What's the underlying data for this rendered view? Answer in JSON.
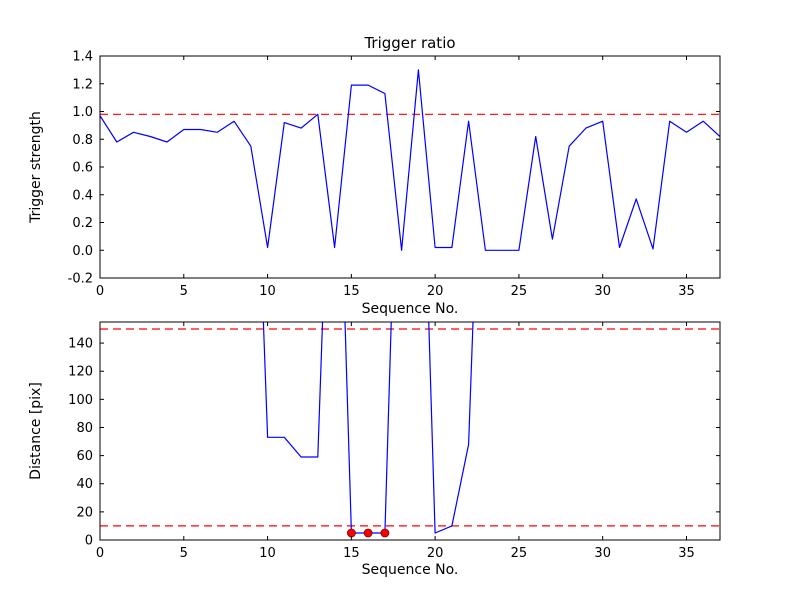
{
  "figure": {
    "background_color": "#ffffff",
    "frame_color": "#000000",
    "line_color": "#0000ff",
    "threshold_color": "#ff0000",
    "marker_color": "#ff0000"
  },
  "chart_data": [
    {
      "type": "line",
      "title": "Trigger ratio",
      "xlabel": "Sequence No.",
      "ylabel": "Trigger strength",
      "xlim": [
        0,
        37
      ],
      "ylim": [
        -0.2,
        1.4
      ],
      "grid": false,
      "legend": "none",
      "xticks": [
        0,
        5,
        10,
        15,
        20,
        25,
        30,
        35
      ],
      "xtick_labels": [
        "0",
        "5",
        "10",
        "15",
        "20",
        "25",
        "30",
        "35"
      ],
      "yticks": [
        -0.2,
        0.0,
        0.2,
        0.4,
        0.6,
        0.8,
        1.0,
        1.2,
        1.4
      ],
      "ytick_labels": [
        "-0.2",
        "0.0",
        "0.2",
        "0.4",
        "0.6",
        "0.8",
        "1.0",
        "1.2",
        "1.4"
      ],
      "threshold_color": "#ff0000",
      "threshold_lines": [
        0.98
      ],
      "x": [
        0,
        1,
        2,
        3,
        4,
        5,
        6,
        7,
        8,
        9,
        10,
        11,
        12,
        13,
        14,
        15,
        16,
        17,
        18,
        19,
        20,
        21,
        22,
        23,
        24,
        25,
        26,
        27,
        28,
        29,
        30,
        31,
        32,
        33,
        34,
        35,
        36,
        37
      ],
      "series": [
        {
          "name": "trigger-strength",
          "color": "#0000ff",
          "values": [
            0.97,
            0.78,
            0.85,
            0.82,
            0.78,
            0.87,
            0.87,
            0.85,
            0.93,
            0.75,
            0.02,
            0.92,
            0.88,
            0.98,
            0.02,
            1.19,
            1.19,
            1.13,
            0.0,
            1.3,
            0.02,
            0.02,
            0.93,
            0.0,
            0.0,
            0.0,
            0.82,
            0.08,
            0.75,
            0.88,
            0.93,
            0.02,
            0.37,
            0.01,
            0.93,
            0.85,
            0.93,
            0.82
          ]
        }
      ]
    },
    {
      "type": "line",
      "title": "",
      "xlabel": "Sequence No.",
      "ylabel": "Distance [pix]",
      "xlim": [
        0,
        37
      ],
      "ylim": [
        0,
        155
      ],
      "grid": false,
      "legend": "none",
      "xticks": [
        0,
        5,
        10,
        15,
        20,
        25,
        30,
        35
      ],
      "xtick_labels": [
        "0",
        "5",
        "10",
        "15",
        "20",
        "25",
        "30",
        "35"
      ],
      "yticks": [
        0,
        20,
        40,
        60,
        80,
        100,
        120,
        140
      ],
      "ytick_labels": [
        "0",
        "20",
        "40",
        "60",
        "80",
        "100",
        "120",
        "140"
      ],
      "threshold_color": "#ff0000",
      "threshold_lines": [
        150,
        10
      ],
      "offscale_value": 400,
      "x": [
        0,
        1,
        2,
        3,
        4,
        5,
        6,
        7,
        8,
        9,
        10,
        11,
        12,
        13,
        14,
        15,
        16,
        17,
        18,
        19,
        20,
        21,
        22,
        23,
        24,
        25,
        26,
        27,
        28,
        29,
        30,
        31,
        32,
        33,
        34,
        35,
        36,
        37
      ],
      "series": [
        {
          "name": "distance",
          "color": "#0000ff",
          "values": [
            400,
            400,
            400,
            400,
            400,
            400,
            400,
            400,
            400,
            400,
            73,
            73,
            59,
            59,
            400,
            5,
            5,
            5,
            400,
            400,
            5,
            10,
            68,
            400,
            400,
            400,
            400,
            400,
            400,
            400,
            400,
            400,
            400,
            400,
            400,
            400,
            400,
            400
          ],
          "clipped_above": 155
        }
      ],
      "markers": {
        "color": "#ff0000",
        "points": [
          [
            15,
            5
          ],
          [
            16,
            5
          ],
          [
            17,
            5
          ]
        ]
      }
    }
  ]
}
